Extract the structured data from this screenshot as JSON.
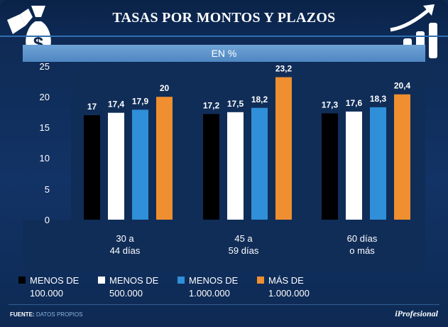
{
  "header": {
    "title": "TASAS POR MONTOS Y PLAZOS",
    "subtitle": "EN %"
  },
  "footer": {
    "source_label": "FUENTE:",
    "source_value": "DATOS PROPIOS",
    "brand": "iProfesional"
  },
  "icons": {
    "left": "money-bag-icon",
    "right": "growth-chart-icon"
  },
  "colors": {
    "black": "#000000",
    "white": "#ffffff",
    "blue": "#2f8fd8",
    "orange": "#ef8f2f"
  },
  "chart_data": {
    "type": "bar",
    "title": "TASAS POR MONTOS Y PLAZOS",
    "subtitle": "EN %",
    "xlabel": "",
    "ylabel": "",
    "ylim": [
      0,
      25
    ],
    "yticks": [
      "0",
      "5",
      "10",
      "15",
      "20",
      "25"
    ],
    "categories": [
      {
        "line1": "30 a",
        "line2": "44 días"
      },
      {
        "line1": "45 a",
        "line2": "59 días"
      },
      {
        "line1": "60 días",
        "line2": "o más"
      }
    ],
    "series": [
      {
        "name_line1": "MENOS DE",
        "name_line2": "100.000",
        "color": "#000000",
        "values": [
          17,
          17.2,
          17.3
        ],
        "labels": [
          "17",
          "17,2",
          "17,3"
        ]
      },
      {
        "name_line1": "MENOS DE",
        "name_line2": "500.000",
        "color": "#ffffff",
        "values": [
          17.4,
          17.5,
          17.6
        ],
        "labels": [
          "17,4",
          "17,5",
          "17,6"
        ]
      },
      {
        "name_line1": "MENOS DE",
        "name_line2": "1.000.000",
        "color": "#2f8fd8",
        "values": [
          17.9,
          18.2,
          18.3
        ],
        "labels": [
          "17,9",
          "18,2",
          "18,3"
        ]
      },
      {
        "name_line1": "MÁS DE",
        "name_line2": "1.000.000",
        "color": "#ef8f2f",
        "values": [
          20,
          23.2,
          20.4
        ],
        "labels": [
          "20",
          "23,2",
          "20,4"
        ]
      }
    ],
    "legend_position": "bottom"
  }
}
